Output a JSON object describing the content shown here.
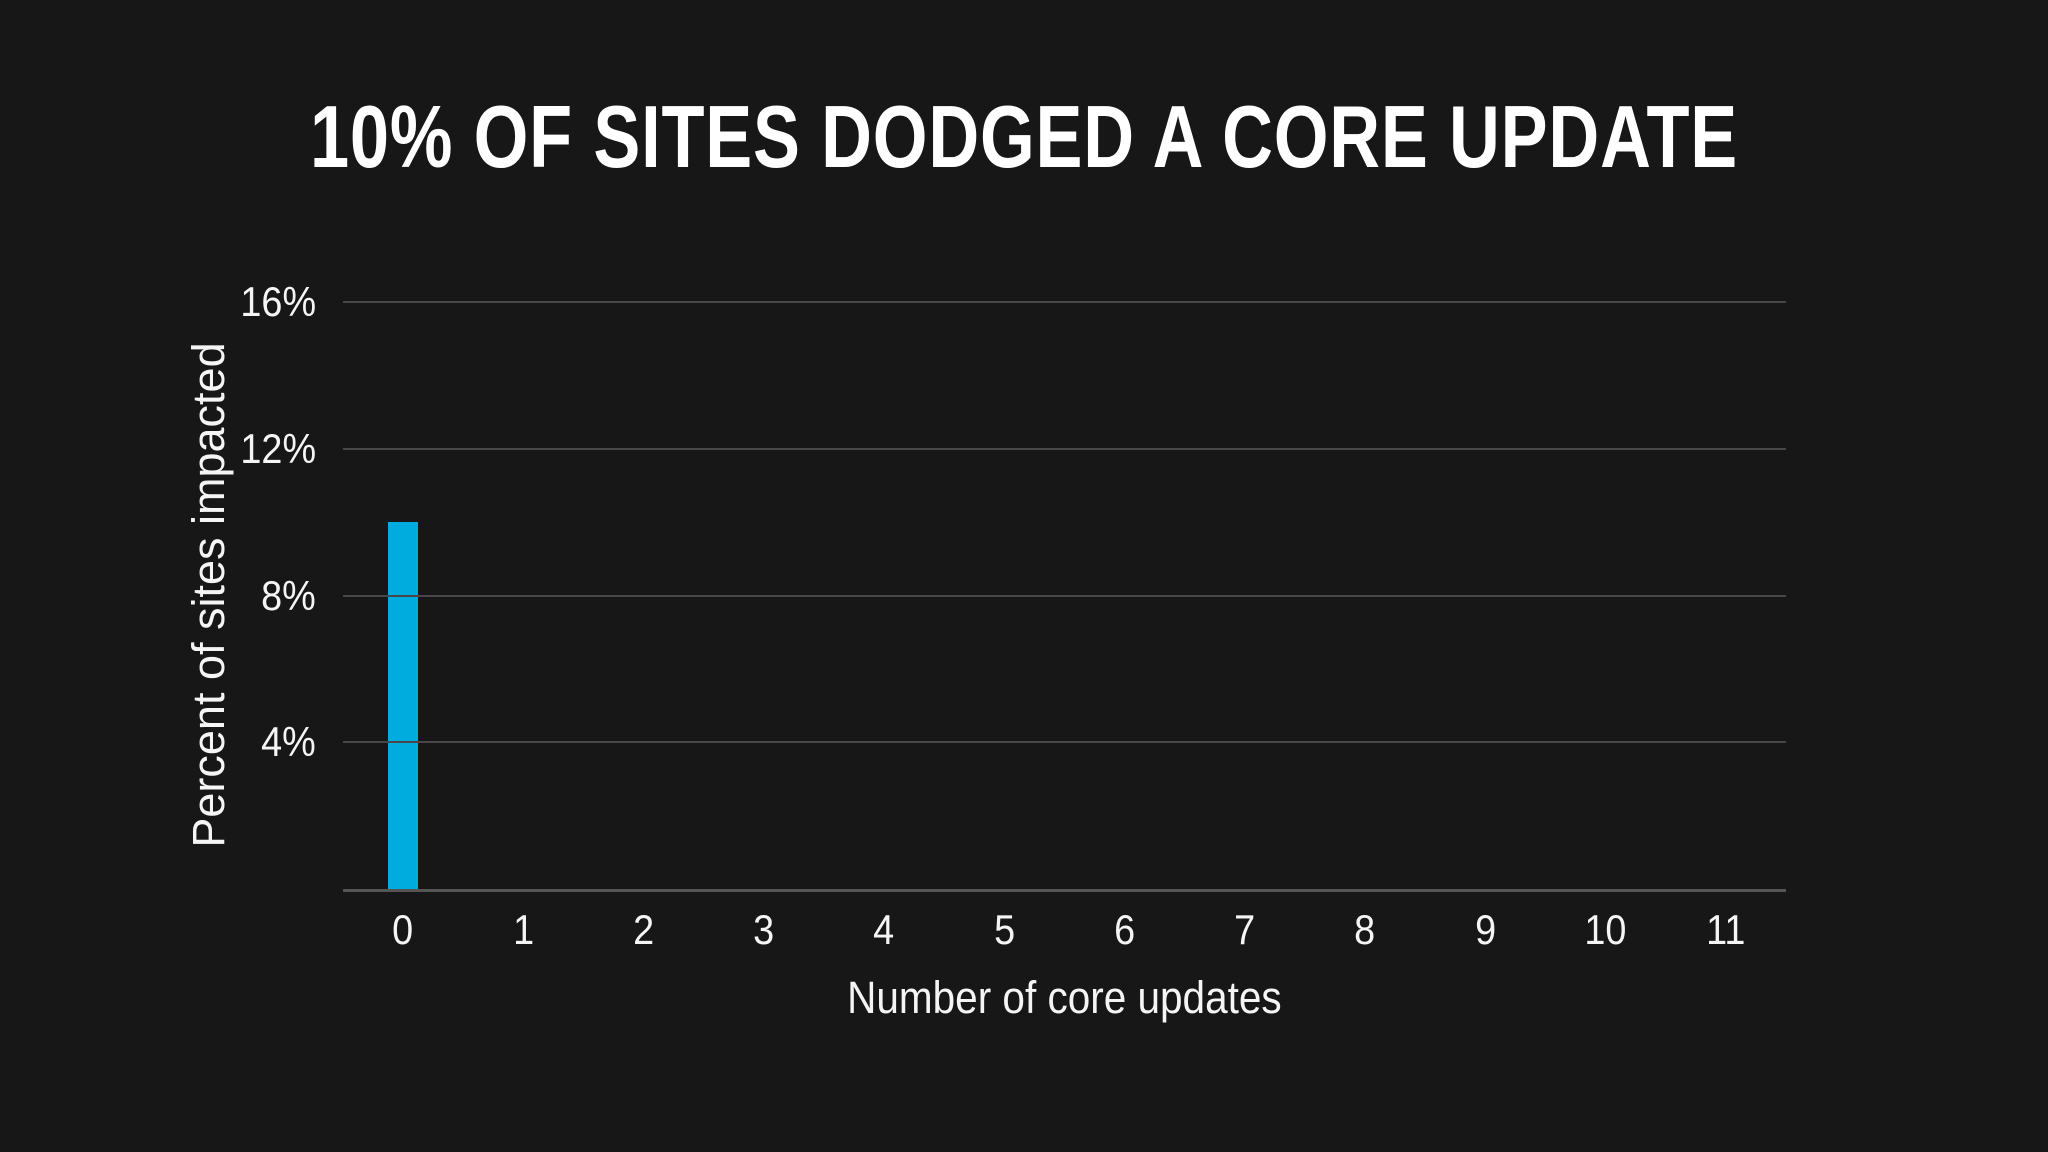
{
  "page": {
    "colors": {
      "background": "#171717",
      "title_text": "#ffffff",
      "label_text": "#f5f5f5",
      "gridline": "#474747",
      "axis_line": "#555555",
      "bar": "#00abdd"
    }
  },
  "chart_data": {
    "type": "bar",
    "title": "10% OF SITES DODGED A CORE UPDATE",
    "xlabel": "Number of core updates",
    "ylabel": "Percent of sites impacted",
    "categories": [
      "0",
      "1",
      "2",
      "3",
      "4",
      "5",
      "6",
      "7",
      "8",
      "9",
      "10",
      "11"
    ],
    "values": [
      10,
      0,
      0,
      0,
      0,
      0,
      0,
      0,
      0,
      0,
      0,
      0
    ],
    "ylim": [
      0,
      16
    ],
    "yticks": [
      {
        "label": "16%",
        "value": 16
      },
      {
        "label": "12%",
        "value": 12
      },
      {
        "label": "8%",
        "value": 8
      },
      {
        "label": "4%",
        "value": 4
      }
    ],
    "grid": "horizontal",
    "legend_position": "none"
  }
}
